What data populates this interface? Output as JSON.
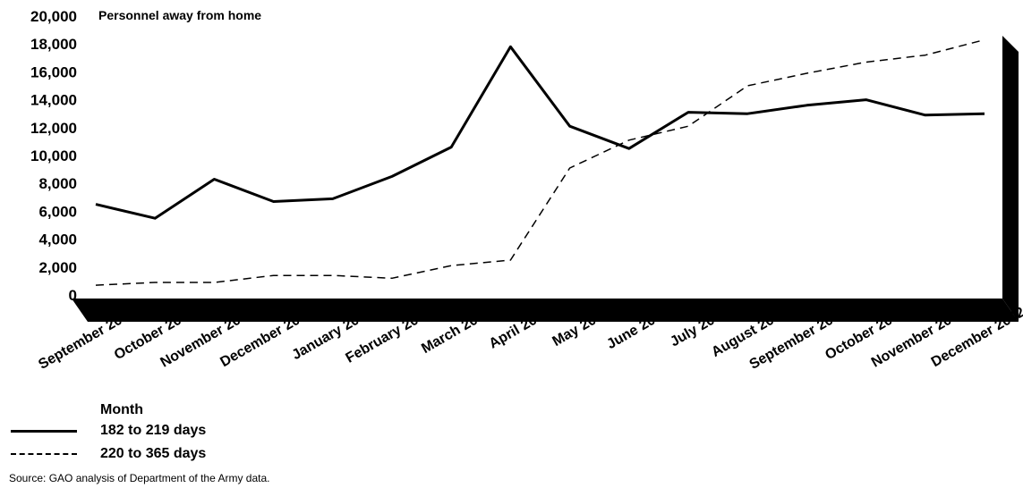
{
  "chart_data": {
    "type": "line",
    "ylabel": "Personnel away from home",
    "xlabel": "Month",
    "ylim": [
      0,
      20000
    ],
    "yticks": [
      "0",
      "2,000",
      "4,000",
      "6,000",
      "8,000",
      "10,000",
      "12,000",
      "14,000",
      "16,000",
      "18,000",
      "20,000"
    ],
    "categories": [
      "September 2001",
      "October 2001",
      "November 2001",
      "December 2001",
      "January 2002",
      "February 2002",
      "March 2002",
      "April 2002",
      "May 2002",
      "June 2002",
      "July 2002",
      "August 2002",
      "September 2002",
      "October 2002",
      "November 2002",
      "December 2002"
    ],
    "series": [
      {
        "name": "182 to 219 days",
        "style": "solid",
        "values": [
          6500,
          5500,
          8300,
          6700,
          6900,
          8500,
          10600,
          17800,
          12100,
          10500,
          13100,
          13000,
          13600,
          14000,
          12900,
          13000
        ]
      },
      {
        "name": "220 to 365 days",
        "style": "dashed",
        "values": [
          700,
          900,
          900,
          1400,
          1400,
          1200,
          2100,
          2500,
          9100,
          11100,
          12100,
          15000,
          15900,
          16700,
          17200,
          18300
        ]
      }
    ],
    "grid": false,
    "legend_position": "bottom-left"
  },
  "source": "Source: GAO analysis of Department of the Army data."
}
